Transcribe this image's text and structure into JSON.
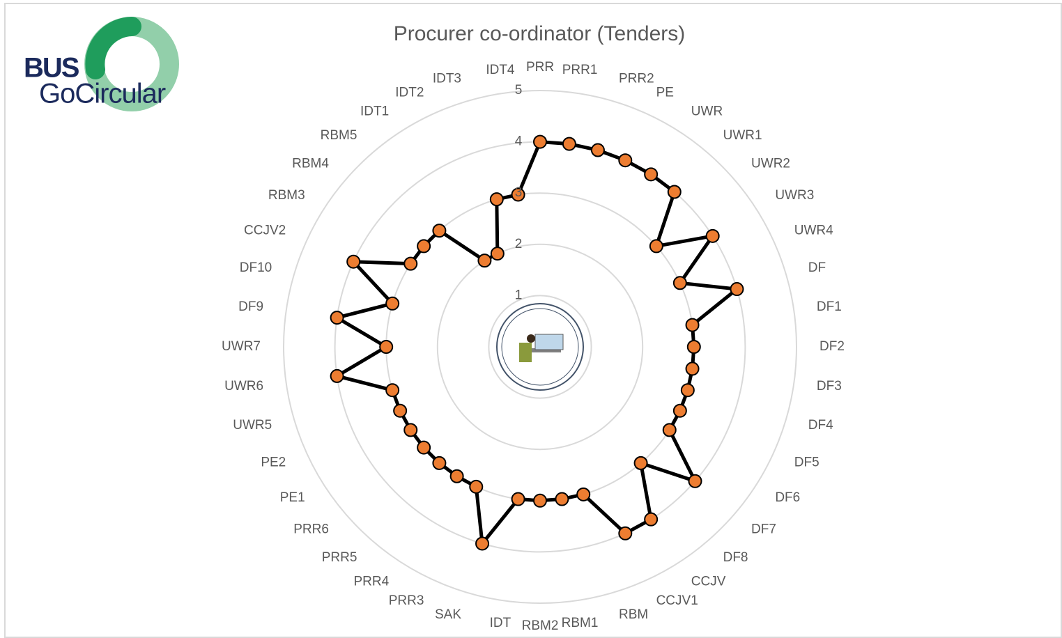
{
  "logo": {
    "line1": "BUS",
    "line2": "GoCircular"
  },
  "chart_data": {
    "type": "radar",
    "title": "Procurer co-ordinator (Tenders)",
    "categories": [
      "PRR",
      "PRR1",
      "PRR2",
      "PE",
      "UWR",
      "UWR1",
      "UWR2",
      "UWR3",
      "UWR4",
      "DF",
      "DF1",
      "DF2",
      "DF3",
      "DF4",
      "DF5",
      "DF6",
      "DF7",
      "DF8",
      "CCJV",
      "CCJV1",
      "RBM",
      "RBM1",
      "RBM2",
      "IDT",
      "SAK",
      "PRR3",
      "PRR4",
      "PRR5",
      "PRR6",
      "PE1",
      "PE2",
      "UWR5",
      "UWR6",
      "UWR7",
      "DF9",
      "DF10",
      "CCJV2",
      "RBM3",
      "RBM4",
      "RBM5",
      "IDT1",
      "IDT2",
      "IDT3",
      "IDT4"
    ],
    "series": [
      {
        "color": "#ed7d31",
        "line_color": "#000000",
        "values": [
          4,
          4,
          4,
          4,
          4,
          4,
          3,
          4,
          3,
          4,
          3,
          3,
          3,
          3,
          3,
          3,
          4,
          3,
          4,
          4,
          3,
          3,
          3,
          3,
          4,
          3,
          3,
          3,
          3,
          3,
          3,
          3,
          4,
          3,
          4,
          3,
          4,
          3,
          3,
          3,
          2,
          2,
          3,
          3
        ]
      }
    ],
    "ylim": [
      0,
      5
    ],
    "yticks": [
      1,
      2,
      3,
      4,
      5
    ],
    "grid": true
  }
}
